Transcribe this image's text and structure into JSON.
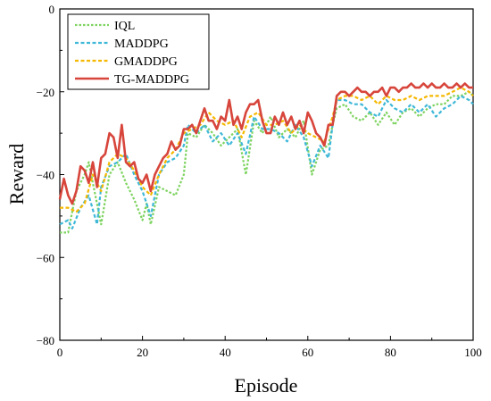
{
  "chart_data": {
    "type": "line",
    "title": "",
    "xlabel": "Episode",
    "ylabel": "Reward",
    "xlim": [
      0,
      100
    ],
    "ylim": [
      -80,
      0
    ],
    "xticks": [
      0,
      20,
      40,
      60,
      80,
      100
    ],
    "yticks": [
      0,
      -20,
      -40,
      -60,
      -80
    ],
    "grid": false,
    "legend_position": "top-left",
    "series": [
      {
        "name": "IQL",
        "color": "#7dd35f",
        "dash": "dotted",
        "x": [
          0,
          2,
          4,
          6,
          7,
          8,
          10,
          12,
          14,
          16,
          18,
          20,
          21,
          22,
          24,
          26,
          28,
          30,
          31,
          33,
          35,
          37,
          39,
          41,
          43,
          45,
          47,
          49,
          51,
          53,
          55,
          57,
          59,
          61,
          63,
          65,
          66,
          67,
          69,
          71,
          73,
          75,
          77,
          79,
          81,
          83,
          85,
          87,
          89,
          91,
          93,
          95,
          97,
          99,
          100
        ],
        "y": [
          -54,
          -54,
          -44,
          -40,
          -37,
          -42,
          -52,
          -40,
          -37,
          -42,
          -46,
          -51,
          -47,
          -52,
          -43,
          -44,
          -45,
          -40,
          -30,
          -31,
          -28,
          -30,
          -33,
          -31,
          -29,
          -40,
          -27,
          -30,
          -26,
          -31,
          -29,
          -31,
          -27,
          -40,
          -34,
          -33,
          -28,
          -24,
          -23,
          -26,
          -27,
          -25,
          -28,
          -25,
          -28,
          -25,
          -24,
          -26,
          -24,
          -23,
          -23,
          -21,
          -21,
          -20,
          -21
        ]
      },
      {
        "name": "MADDPG",
        "color": "#3fb8d8",
        "dash": "dashed",
        "x": [
          0,
          2,
          3,
          5,
          7,
          9,
          10,
          12,
          14,
          16,
          18,
          20,
          22,
          24,
          26,
          28,
          30,
          31,
          33,
          35,
          37,
          39,
          41,
          43,
          45,
          47,
          49,
          51,
          53,
          55,
          57,
          59,
          61,
          63,
          65,
          66,
          67,
          69,
          71,
          73,
          75,
          77,
          79,
          81,
          83,
          85,
          87,
          89,
          91,
          93,
          95,
          97,
          99,
          100
        ],
        "y": [
          -52,
          -51,
          -53,
          -48,
          -45,
          -52,
          -43,
          -38,
          -37,
          -35,
          -40,
          -44,
          -50,
          -40,
          -37,
          -36,
          -33,
          -28,
          -30,
          -28,
          -32,
          -30,
          -33,
          -30,
          -35,
          -26,
          -29,
          -29,
          -30,
          -32,
          -28,
          -31,
          -38,
          -33,
          -36,
          -28,
          -22,
          -22,
          -23,
          -23,
          -25,
          -26,
          -22,
          -24,
          -25,
          -23,
          -25,
          -23,
          -26,
          -24,
          -23,
          -21,
          -22,
          -23
        ]
      },
      {
        "name": "GMADDPG",
        "color": "#f5b800",
        "dash": "dashed",
        "x": [
          0,
          2,
          4,
          6,
          8,
          10,
          12,
          14,
          16,
          18,
          20,
          22,
          24,
          26,
          28,
          30,
          32,
          34,
          36,
          38,
          40,
          42,
          44,
          46,
          48,
          50,
          52,
          54,
          56,
          58,
          60,
          62,
          64,
          66,
          67,
          69,
          71,
          73,
          75,
          77,
          79,
          81,
          83,
          85,
          87,
          89,
          91,
          93,
          95,
          97,
          99,
          100
        ],
        "y": [
          -48,
          -48,
          -49,
          -47,
          -40,
          -44,
          -37,
          -35,
          -36,
          -39,
          -43,
          -45,
          -40,
          -36,
          -34,
          -30,
          -29,
          -28,
          -25,
          -27,
          -28,
          -27,
          -31,
          -26,
          -25,
          -28,
          -28,
          -27,
          -30,
          -28,
          -30,
          -31,
          -32,
          -26,
          -22,
          -21,
          -21,
          -22,
          -21,
          -23,
          -21,
          -22,
          -22,
          -21,
          -22,
          -21,
          -21,
          -21,
          -20,
          -19,
          -20,
          -21
        ]
      },
      {
        "name": "TG-MADDPG",
        "color": "#d7453b",
        "dash": "solid",
        "x": [
          0,
          1,
          2,
          3,
          4,
          5,
          6,
          7,
          8,
          9,
          10,
          11,
          12,
          13,
          14,
          15,
          16,
          17,
          18,
          19,
          20,
          21,
          22,
          23,
          24,
          25,
          26,
          27,
          28,
          29,
          30,
          31,
          32,
          33,
          34,
          35,
          36,
          37,
          38,
          39,
          40,
          41,
          42,
          43,
          44,
          45,
          46,
          47,
          48,
          49,
          50,
          51,
          52,
          53,
          54,
          55,
          56,
          57,
          58,
          59,
          60,
          61,
          62,
          63,
          64,
          65,
          66,
          67,
          68,
          69,
          70,
          71,
          72,
          73,
          74,
          75,
          76,
          77,
          78,
          79,
          80,
          81,
          82,
          83,
          84,
          85,
          86,
          87,
          88,
          89,
          90,
          91,
          92,
          93,
          94,
          95,
          96,
          97,
          98,
          99,
          100
        ],
        "y": [
          -46,
          -41,
          -45,
          -47,
          -44,
          -38,
          -39,
          -42,
          -37,
          -43,
          -36,
          -35,
          -30,
          -31,
          -36,
          -28,
          -37,
          -38,
          -37,
          -41,
          -42,
          -40,
          -44,
          -40,
          -38,
          -36,
          -35,
          -32,
          -34,
          -33,
          -29,
          -29,
          -28,
          -30,
          -27,
          -24,
          -27,
          -27,
          -29,
          -26,
          -27,
          -22,
          -28,
          -26,
          -29,
          -25,
          -23,
          -23,
          -22,
          -27,
          -30,
          -30,
          -26,
          -28,
          -25,
          -28,
          -26,
          -29,
          -27,
          -30,
          -25,
          -27,
          -30,
          -31,
          -33,
          -28,
          -28,
          -21,
          -20,
          -20,
          -21,
          -20,
          -19,
          -20,
          -20,
          -21,
          -20,
          -20,
          -19,
          -21,
          -19,
          -19,
          -20,
          -19,
          -19,
          -18,
          -19,
          -19,
          -18,
          -19,
          -18,
          -19,
          -19,
          -18,
          -19,
          -19,
          -18,
          -19,
          -18,
          -19,
          -19
        ]
      }
    ]
  }
}
